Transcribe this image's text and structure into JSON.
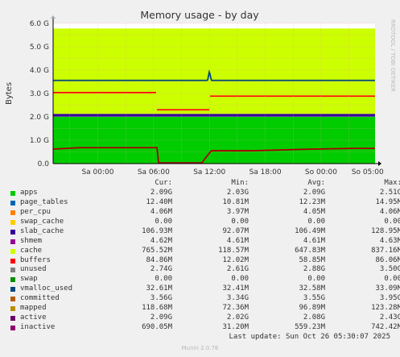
{
  "chart_data": {
    "type": "area",
    "title": "Memory usage - by day",
    "ylabel": "Bytes",
    "side_label": "RRDTOOL / TOBI OETIKER",
    "ylim": [
      0,
      6.0
    ],
    "y_unit": "G",
    "y_ticks": [
      "0.0",
      "1.0 G",
      "2.0 G",
      "3.0 G",
      "4.0 G",
      "5.0 G",
      "6.0 G"
    ],
    "x_ticks": [
      "Sa 00:00",
      "Sa 06:00",
      "Sa 12:00",
      "Sa 18:00",
      "So 00:00",
      "So 05:00"
    ],
    "colors": {
      "background": "#f0f0f0",
      "plot_bg": "#ffffff",
      "grid_minor": "#f0a0a0",
      "grid_major": "#ff5555"
    },
    "hours_offset_start": -4.8,
    "hours_offset_end": 29.8,
    "stack_values_G": {
      "note_free": "",
      "apps_ramp": [
        {
          "t": -4.8,
          "v": 2.0
        },
        {
          "t": 6.2,
          "v": 2.0
        },
        {
          "t": 6.3,
          "v": 2.0
        },
        {
          "t": 29.8,
          "v": 2.0
        }
      ],
      "cache_level_left": 0.88,
      "cache_level_dip": 0.15,
      "cache_level_right": 0.73,
      "unused_top": 5.78,
      "committed": [
        {
          "t": -4.8,
          "v": 3.56
        },
        {
          "t": 11.8,
          "v": 3.56
        },
        {
          "t": 12.0,
          "v": 3.95
        },
        {
          "t": 12.2,
          "v": 3.56
        },
        {
          "t": 29.8,
          "v": 3.56
        }
      ],
      "inactive": [
        {
          "t": -4.8,
          "v": 0.62
        },
        {
          "t": -2.0,
          "v": 0.68
        },
        {
          "t": 6.4,
          "v": 0.68
        },
        {
          "t": 6.5,
          "v": 0.03
        },
        {
          "t": 11.2,
          "v": 0.03
        },
        {
          "t": 11.4,
          "v": 0.15
        },
        {
          "t": 12.2,
          "v": 0.55
        },
        {
          "t": 16.5,
          "v": 0.55
        },
        {
          "t": 23.0,
          "v": 0.62
        },
        {
          "t": 27.5,
          "v": 0.65
        },
        {
          "t": 29.8,
          "v": 0.65
        }
      ]
    },
    "series": [
      {
        "name": "apps",
        "color": "#00cc00",
        "cur": "2.09G",
        "min": "2.03G",
        "avg": "2.09G",
        "max": "2.51G"
      },
      {
        "name": "page_tables",
        "color": "#0066b3",
        "cur": "12.40M",
        "min": "10.81M",
        "avg": "12.23M",
        "max": "14.95M"
      },
      {
        "name": "per_cpu",
        "color": "#ff8000",
        "cur": "4.06M",
        "min": "3.97M",
        "avg": "4.05M",
        "max": "4.06M"
      },
      {
        "name": "swap_cache",
        "color": "#ffcc00",
        "cur": "0.00",
        "min": "0.00",
        "avg": "0.00",
        "max": "0.00"
      },
      {
        "name": "slab_cache",
        "color": "#330099",
        "cur": "106.93M",
        "min": "92.07M",
        "avg": "106.49M",
        "max": "128.95M"
      },
      {
        "name": "shmem",
        "color": "#990099",
        "cur": "4.62M",
        "min": "4.61M",
        "avg": "4.61M",
        "max": "4.63M"
      },
      {
        "name": "cache",
        "color": "#ccff00",
        "cur": "765.52M",
        "min": "118.57M",
        "avg": "647.83M",
        "max": "837.16M"
      },
      {
        "name": "buffers",
        "color": "#ff0000",
        "cur": "84.86M",
        "min": "12.02M",
        "avg": "58.85M",
        "max": "86.06M"
      },
      {
        "name": "unused",
        "color": "#808080",
        "cur": "2.74G",
        "min": "2.61G",
        "avg": "2.88G",
        "max": "3.50G"
      },
      {
        "name": "swap",
        "color": "#008f00",
        "cur": "0.00",
        "min": "0.00",
        "avg": "0.00",
        "max": "0.00"
      },
      {
        "name": "vmalloc_used",
        "color": "#00487d",
        "cur": "32.61M",
        "min": "32.41M",
        "avg": "32.58M",
        "max": "33.09M"
      },
      {
        "name": "committed",
        "color": "#b35a00",
        "cur": "3.56G",
        "min": "3.34G",
        "avg": "3.55G",
        "max": "3.95G"
      },
      {
        "name": "mapped",
        "color": "#b38f00",
        "cur": "118.68M",
        "min": "72.36M",
        "avg": "96.89M",
        "max": "123.28M"
      },
      {
        "name": "active",
        "color": "#6b006b",
        "cur": "2.09G",
        "min": "2.02G",
        "avg": "2.08G",
        "max": "2.43G"
      },
      {
        "name": "inactive",
        "color": "#8f006b",
        "cur": "690.05M",
        "min": "31.20M",
        "avg": "559.23M",
        "max": "742.42M"
      }
    ]
  },
  "legend": {
    "header_cur": "Cur:",
    "header_min": "Min:",
    "header_avg": "Avg:",
    "header_max": "Max:"
  },
  "swatch_colors": [
    "#00cc00",
    "#0066b3",
    "#ff8000",
    "#ffcc00",
    "#330099",
    "#990099",
    "#ccff00",
    "#ff0000",
    "#808080",
    "#008f00",
    "#00487d",
    "#b35a00",
    "#b38f00",
    "#6b006b",
    "#8f006b"
  ],
  "legend_display_names": [
    "apps",
    "page_tables",
    "per_cpu",
    "swap_cache",
    "slab_cache",
    "shmem",
    "cache",
    "buffers",
    "unused",
    "swap",
    "vmalloc_used",
    "committed",
    "mapped",
    "active",
    "inactive"
  ],
  "footer": {
    "last_update": "Last update: Sun Oct 26 05:30:07 2025",
    "version": "Munin 2.0.76"
  }
}
